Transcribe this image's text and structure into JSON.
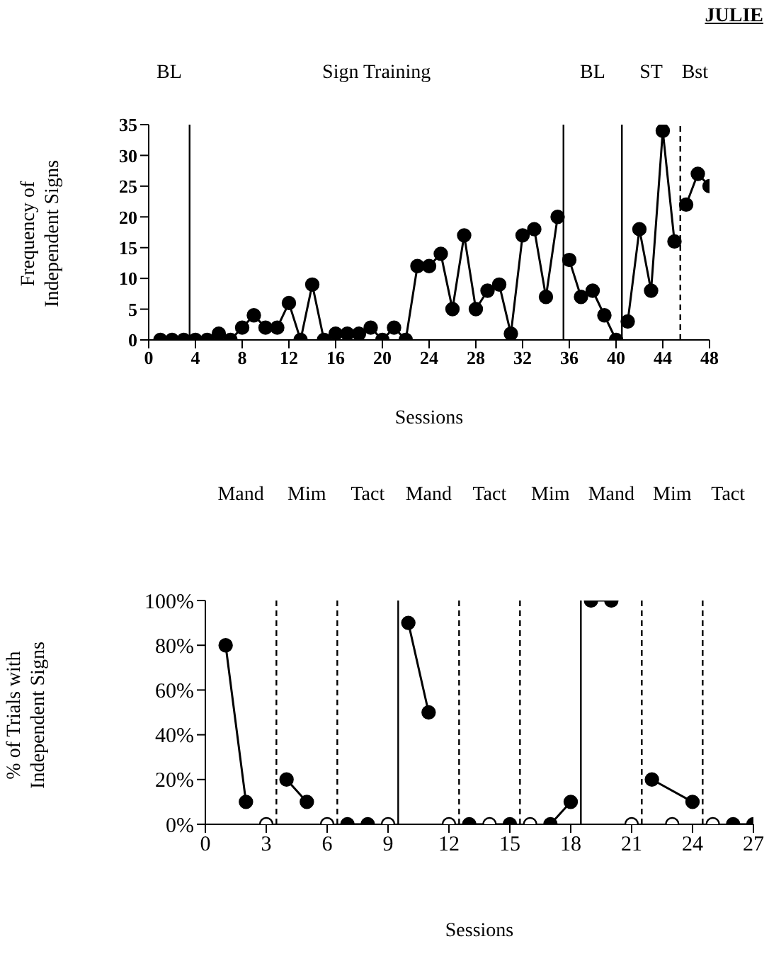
{
  "chart_data": [
    {
      "type": "line",
      "title": "JULIE",
      "xlabel": "Sessions",
      "ylabel": "Frequency of Independent Signs",
      "x": [
        1,
        2,
        3,
        4,
        5,
        6,
        7,
        8,
        9,
        10,
        11,
        12,
        13,
        14,
        15,
        16,
        17,
        18,
        19,
        20,
        21,
        22,
        23,
        24,
        25,
        26,
        27,
        28,
        29,
        30,
        31,
        32,
        33,
        34,
        35,
        35.5,
        36,
        37,
        38,
        39,
        40,
        40.5,
        41,
        42,
        43,
        44,
        45,
        45.5,
        46,
        47,
        48
      ],
      "series": [
        {
          "color": "#000000",
          "values": [
            0,
            0,
            0,
            0,
            0,
            1,
            0,
            2,
            4,
            2,
            2,
            6,
            0,
            9,
            0,
            1,
            1,
            1,
            2,
            0,
            2,
            0,
            12,
            12,
            14,
            5,
            17,
            5,
            8,
            9,
            1,
            17,
            18,
            7,
            20,
            null,
            13,
            7,
            8,
            4,
            0,
            null,
            3,
            18,
            8,
            34,
            16,
            null,
            22,
            27,
            25
          ]
        }
      ],
      "xlim": [
        0,
        48
      ],
      "xticks": [
        0,
        4,
        8,
        12,
        16,
        20,
        24,
        28,
        32,
        36,
        40,
        44,
        48
      ],
      "ylim": [
        0,
        35
      ],
      "yticks": [
        0,
        5,
        10,
        15,
        20,
        25,
        30,
        35
      ],
      "marker": "circle",
      "ref_lines": [
        {
          "axis": "x",
          "value": 3.5,
          "line_style": "solid"
        },
        {
          "axis": "x",
          "value": 35.5,
          "line_style": "solid"
        },
        {
          "axis": "x",
          "value": 40.5,
          "line_style": "solid"
        },
        {
          "axis": "x",
          "value": 45.5,
          "line_style": "dashed"
        }
      ],
      "annotations": [
        "BL",
        "Sign Training",
        "BL",
        "ST",
        "Bst"
      ]
    },
    {
      "type": "line",
      "xlabel": "Sessions",
      "ylabel": "% of Trials with Independent Signs",
      "series": [
        {
          "color": "#000000",
          "x": [
            1,
            2,
            3.5,
            4,
            5,
            6.5,
            7,
            8,
            9.5,
            10,
            11,
            12.5,
            13,
            15,
            15.5,
            17,
            18,
            18.5,
            19,
            20,
            21.5,
            22,
            24,
            24.5,
            26,
            27
          ],
          "values": [
            80,
            10,
            null,
            20,
            10,
            null,
            0,
            0,
            null,
            90,
            50,
            null,
            0,
            0,
            null,
            0,
            10,
            null,
            100,
            100,
            null,
            20,
            10,
            null,
            0,
            0
          ]
        },
        {
          "type": "scatter",
          "color": "#ffffff",
          "x": [
            3,
            6,
            9,
            12,
            14,
            16,
            21,
            23,
            25
          ],
          "values": [
            0,
            0,
            0,
            0,
            0,
            0,
            0,
            0,
            0
          ]
        }
      ],
      "xlim": [
        0,
        27
      ],
      "xticks": [
        0,
        3,
        6,
        9,
        12,
        15,
        18,
        21,
        24,
        27
      ],
      "ylim": [
        0,
        100
      ],
      "yticks": [
        {
          "value": 0,
          "label": "0%"
        },
        {
          "value": 20,
          "label": "20%"
        },
        {
          "value": 40,
          "label": "40%"
        },
        {
          "value": 60,
          "label": "60%"
        },
        {
          "value": 80,
          "label": "80%"
        },
        {
          "value": 100,
          "label": "100%"
        }
      ],
      "marker": "circle",
      "ref_lines": [
        {
          "axis": "x",
          "value": 3.5,
          "line_style": "dashed"
        },
        {
          "axis": "x",
          "value": 6.5,
          "line_style": "dashed"
        },
        {
          "axis": "x",
          "value": 9.5,
          "line_style": "solid"
        },
        {
          "axis": "x",
          "value": 12.5,
          "line_style": "dashed"
        },
        {
          "axis": "x",
          "value": 15.5,
          "line_style": "dashed"
        },
        {
          "axis": "x",
          "value": 18.5,
          "line_style": "solid"
        },
        {
          "axis": "x",
          "value": 21.5,
          "line_style": "dashed"
        },
        {
          "axis": "x",
          "value": 24.5,
          "line_style": "dashed"
        }
      ],
      "annotations": [
        "Mand",
        "Mim",
        "Tact",
        "Mand",
        "Tact",
        "Mim",
        "Mand",
        "Mim",
        "Tact"
      ]
    }
  ]
}
